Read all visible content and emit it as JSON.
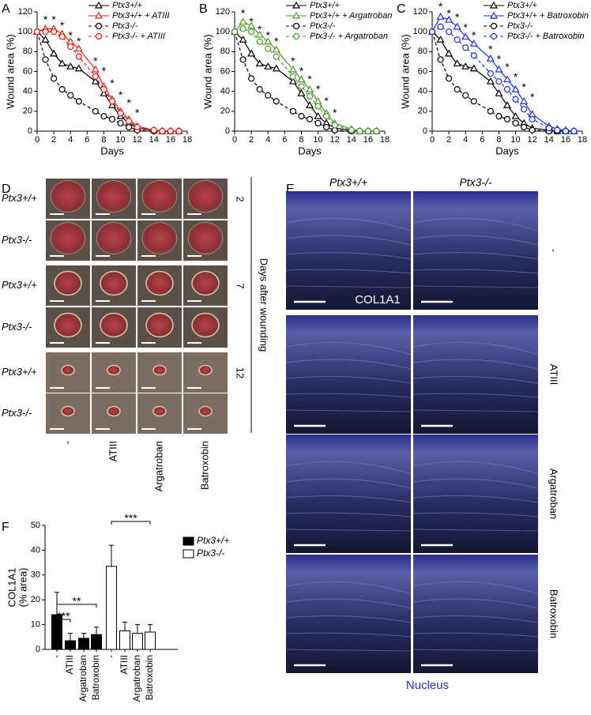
{
  "panel_labels": [
    "A",
    "B",
    "C",
    "D",
    "E",
    "F"
  ],
  "chart_data": [
    {
      "type": "line",
      "x_label": "Days",
      "y_label": "Wound area (%)",
      "x": [
        0,
        1,
        2,
        3,
        4,
        5,
        7,
        8,
        9,
        10,
        11,
        12,
        14,
        15,
        16,
        17
      ],
      "xlim": [
        0,
        18
      ],
      "xticks": [
        0,
        2,
        4,
        6,
        8,
        10,
        12,
        14,
        16,
        18
      ],
      "ylim": [
        0,
        120
      ],
      "yticks": [
        0,
        20,
        40,
        60,
        80,
        100,
        120
      ],
      "series": [
        {
          "name": "Ptx3+/+",
          "color": "#000000",
          "marker": "triangle",
          "dashed": false,
          "values": [
            100,
            92,
            78,
            68,
            65,
            63,
            50,
            38,
            26,
            15,
            8,
            3,
            1,
            0,
            0,
            0
          ]
        },
        {
          "name": "Ptx3+/+ + ATIII",
          "color": "#e0201b",
          "marker": "triangle",
          "dashed": false,
          "values": [
            100,
            103,
            103,
            98,
            90,
            83,
            62,
            45,
            32,
            20,
            12,
            5,
            1,
            0,
            0,
            0
          ]
        },
        {
          "name": "Ptx3-/-",
          "color": "#000000",
          "marker": "circle",
          "dashed": true,
          "values": [
            100,
            72,
            53,
            42,
            36,
            30,
            20,
            15,
            12,
            8,
            4,
            1,
            0,
            0,
            0,
            0
          ]
        },
        {
          "name": "Ptx3-/- + ATIII",
          "color": "#e0201b",
          "marker": "circle",
          "dashed": true,
          "values": [
            100,
            100,
            100,
            95,
            85,
            75,
            55,
            42,
            30,
            18,
            10,
            4,
            1,
            0,
            0,
            0
          ]
        }
      ],
      "annotations": [
        {
          "text": "*",
          "x": 1,
          "y": 114
        },
        {
          "text": "*",
          "x": 2,
          "y": 114
        },
        {
          "text": "*",
          "x": 3,
          "y": 108
        },
        {
          "text": "*",
          "x": 4,
          "y": 98
        },
        {
          "text": "*",
          "x": 5,
          "y": 92
        },
        {
          "text": "*",
          "x": 7,
          "y": 72
        },
        {
          "text": "*",
          "x": 8,
          "y": 62
        },
        {
          "text": "*",
          "x": 9,
          "y": 50
        },
        {
          "text": "*",
          "x": 10,
          "y": 38
        },
        {
          "text": "*",
          "x": 11,
          "y": 30
        },
        {
          "text": "*",
          "x": 12,
          "y": 20
        }
      ]
    },
    {
      "type": "line",
      "x_label": "Days",
      "y_label": "Wound area (%)",
      "x": [
        0,
        1,
        2,
        3,
        4,
        5,
        7,
        8,
        9,
        10,
        11,
        12,
        14,
        15,
        16,
        17
      ],
      "xlim": [
        0,
        18
      ],
      "xticks": [
        0,
        2,
        4,
        6,
        8,
        10,
        12,
        14,
        16,
        18
      ],
      "ylim": [
        0,
        120
      ],
      "yticks": [
        0,
        20,
        40,
        60,
        80,
        100,
        120
      ],
      "series": [
        {
          "name": "Ptx3+/+",
          "color": "#000000",
          "marker": "triangle",
          "dashed": false,
          "values": [
            100,
            92,
            78,
            68,
            65,
            63,
            50,
            38,
            26,
            15,
            8,
            3,
            1,
            0,
            0,
            0
          ]
        },
        {
          "name": "Ptx3+/+ + Argatroban",
          "color": "#4a9a2a",
          "marker": "triangle",
          "dashed": false,
          "values": [
            100,
            110,
            106,
            97,
            90,
            82,
            62,
            52,
            42,
            30,
            18,
            8,
            2,
            0,
            0,
            0
          ]
        },
        {
          "name": "Ptx3-/-",
          "color": "#000000",
          "marker": "circle",
          "dashed": true,
          "values": [
            100,
            72,
            53,
            42,
            36,
            30,
            20,
            15,
            12,
            8,
            4,
            1,
            0,
            0,
            0,
            0
          ]
        },
        {
          "name": "Ptx3-/- + Argatroban",
          "color": "#4a9a2a",
          "marker": "circle",
          "dashed": true,
          "values": [
            100,
            103,
            100,
            90,
            83,
            75,
            55,
            45,
            35,
            25,
            15,
            6,
            1,
            0,
            0,
            0
          ]
        }
      ],
      "annotations": [
        {
          "text": "*",
          "x": 1,
          "y": 120
        },
        {
          "text": "*",
          "x": 2,
          "y": 112
        },
        {
          "text": "*",
          "x": 3,
          "y": 104
        },
        {
          "text": "*",
          "x": 4,
          "y": 98
        },
        {
          "text": "*",
          "x": 5,
          "y": 92
        },
        {
          "text": "*",
          "x": 7,
          "y": 72
        },
        {
          "text": "*",
          "x": 8,
          "y": 62
        },
        {
          "text": "*",
          "x": 9,
          "y": 54
        },
        {
          "text": "*",
          "x": 10,
          "y": 44
        },
        {
          "text": "*",
          "x": 11,
          "y": 32
        },
        {
          "text": "*",
          "x": 12,
          "y": 20
        }
      ]
    },
    {
      "type": "line",
      "x_label": "Days",
      "y_label": "Wound area (%)",
      "x": [
        0,
        1,
        2,
        3,
        4,
        5,
        7,
        8,
        9,
        10,
        11,
        12,
        14,
        15,
        16,
        17
      ],
      "xlim": [
        0,
        18
      ],
      "xticks": [
        0,
        2,
        4,
        6,
        8,
        10,
        12,
        14,
        16,
        18
      ],
      "ylim": [
        0,
        120
      ],
      "yticks": [
        0,
        20,
        40,
        60,
        80,
        100,
        120
      ],
      "series": [
        {
          "name": "Ptx3+/+",
          "color": "#000000",
          "marker": "triangle",
          "dashed": false,
          "values": [
            100,
            92,
            78,
            68,
            65,
            63,
            50,
            38,
            26,
            15,
            8,
            3,
            1,
            0,
            0,
            0
          ]
        },
        {
          "name": "Ptx3+/+ + Batroxobin",
          "color": "#1f2fd6",
          "marker": "triangle",
          "dashed": false,
          "values": [
            100,
            115,
            112,
            105,
            95,
            88,
            73,
            62,
            52,
            42,
            30,
            17,
            5,
            2,
            1,
            0
          ]
        },
        {
          "name": "Ptx3-/-",
          "color": "#000000",
          "marker": "circle",
          "dashed": true,
          "values": [
            100,
            72,
            53,
            42,
            36,
            30,
            20,
            15,
            12,
            8,
            4,
            1,
            0,
            0,
            0,
            0
          ]
        },
        {
          "name": "Ptx3-/- + Batroxobin",
          "color": "#1f2fd6",
          "marker": "circle",
          "dashed": true,
          "values": [
            100,
            105,
            100,
            92,
            84,
            76,
            58,
            50,
            42,
            32,
            22,
            12,
            3,
            1,
            0,
            0
          ]
        }
      ],
      "annotations": [
        {
          "text": "*",
          "x": 1,
          "y": 127
        },
        {
          "text": "*",
          "x": 2,
          "y": 120
        },
        {
          "text": "*",
          "x": 3,
          "y": 116
        },
        {
          "text": "*",
          "x": 4,
          "y": 106
        },
        {
          "text": "*",
          "x": 5,
          "y": 98
        },
        {
          "text": "*",
          "x": 7,
          "y": 84
        },
        {
          "text": "*",
          "x": 8,
          "y": 74
        },
        {
          "text": "*",
          "x": 9,
          "y": 66
        },
        {
          "text": "*",
          "x": 10,
          "y": 56
        },
        {
          "text": "*",
          "x": 11,
          "y": 46
        },
        {
          "text": "*",
          "x": 12,
          "y": 36
        }
      ]
    },
    {
      "type": "bar",
      "y_label": [
        "COL1A1",
        "(% area)"
      ],
      "categories": [
        "-",
        "ATIII",
        "Argatroban",
        "Batroxobin"
      ],
      "ylim": [
        0,
        50
      ],
      "yticks": [
        0,
        10,
        20,
        30,
        40,
        50
      ],
      "series": [
        {
          "name": "Ptx3+/+",
          "color": "#000000",
          "values": [
            14,
            3.5,
            4.5,
            6
          ],
          "errors": [
            9,
            3,
            2,
            3
          ]
        },
        {
          "name": "Ptx3-/-",
          "color": "#ffffff",
          "values": [
            33.5,
            7.5,
            6.5,
            7
          ],
          "errors": [
            8.5,
            3.5,
            3.5,
            3
          ]
        }
      ],
      "brackets": [
        {
          "text": "***",
          "from": 0,
          "to": 1
        },
        {
          "text": "**",
          "from": 0,
          "to": 3
        },
        {
          "text": "***",
          "from": 4,
          "to": 7
        }
      ]
    }
  ],
  "photo_panel_d": {
    "row_labels": [
      "Ptx3+/+",
      "Ptx3-/-",
      "Ptx3+/+",
      "Ptx3-/-",
      "Ptx3+/+",
      "Ptx3-/-"
    ],
    "day_labels": [
      "2",
      "7",
      "12"
    ],
    "axis_label": "Days after wounding",
    "column_labels": [
      "-",
      "ATIII",
      "Argatroban",
      "Batroxobin"
    ]
  },
  "photo_panel_e": {
    "column_labels": [
      "Ptx3+/+",
      "Ptx3-/-"
    ],
    "row_labels": [
      "-",
      "ATIII",
      "Argatroban",
      "Batroxobin"
    ],
    "stain_label": "COL1A1",
    "counterstain_label": "Nucleus"
  }
}
